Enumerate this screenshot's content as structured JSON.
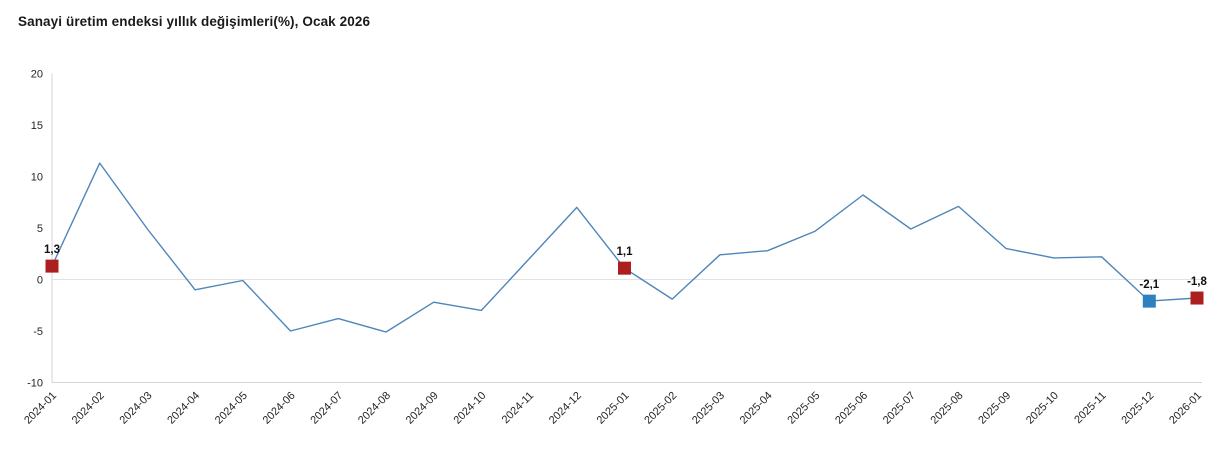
{
  "title": "Sanayi üretim endeksi yıllık değişimleri(%), Ocak 2026",
  "chart_data": {
    "type": "line",
    "title": "Sanayi üretim endeksi yıllık değişimleri(%), Ocak 2026",
    "xlabel": "",
    "ylabel": "",
    "categories": [
      "2024-01",
      "2024-02",
      "2024-03",
      "2024-04",
      "2024-05",
      "2024-06",
      "2024-07",
      "2024-08",
      "2024-09",
      "2024-10",
      "2024-11",
      "2024-12",
      "2025-01",
      "2025-02",
      "2025-03",
      "2025-04",
      "2025-05",
      "2025-06",
      "2025-07",
      "2025-08",
      "2025-09",
      "2025-10",
      "2025-11",
      "2025-12",
      "2026-01"
    ],
    "values": [
      1.3,
      11.3,
      4.9,
      -1.0,
      -0.1,
      -5.0,
      -3.8,
      -5.1,
      -2.2,
      -3.0,
      2.0,
      7.0,
      1.1,
      -1.9,
      2.4,
      2.8,
      4.7,
      8.2,
      4.9,
      7.1,
      3.0,
      2.1,
      2.2,
      -2.1,
      -1.8
    ],
    "ylim": [
      -10,
      20
    ],
    "yticks": [
      20,
      15,
      10,
      5,
      0,
      -5,
      -10
    ],
    "grid": "zero-line-only",
    "legend": "none",
    "line_color": "#4f86ba",
    "annotated_points": [
      {
        "index": 0,
        "label": "1,3",
        "marker_color": "#ab1f1f"
      },
      {
        "index": 12,
        "label": "1,1",
        "marker_color": "#ab1f1f"
      },
      {
        "index": 23,
        "label": "-2,1",
        "marker_color": "#2e80bf"
      },
      {
        "index": 24,
        "label": "-1,8",
        "marker_color": "#ab1f1f"
      }
    ]
  },
  "colors": {
    "axis_line": "#d6d6d6",
    "zero_gridline": "#e2e2e2",
    "tick_text": "#262626",
    "annotation_text": "#111111",
    "background": "#ffffff"
  }
}
